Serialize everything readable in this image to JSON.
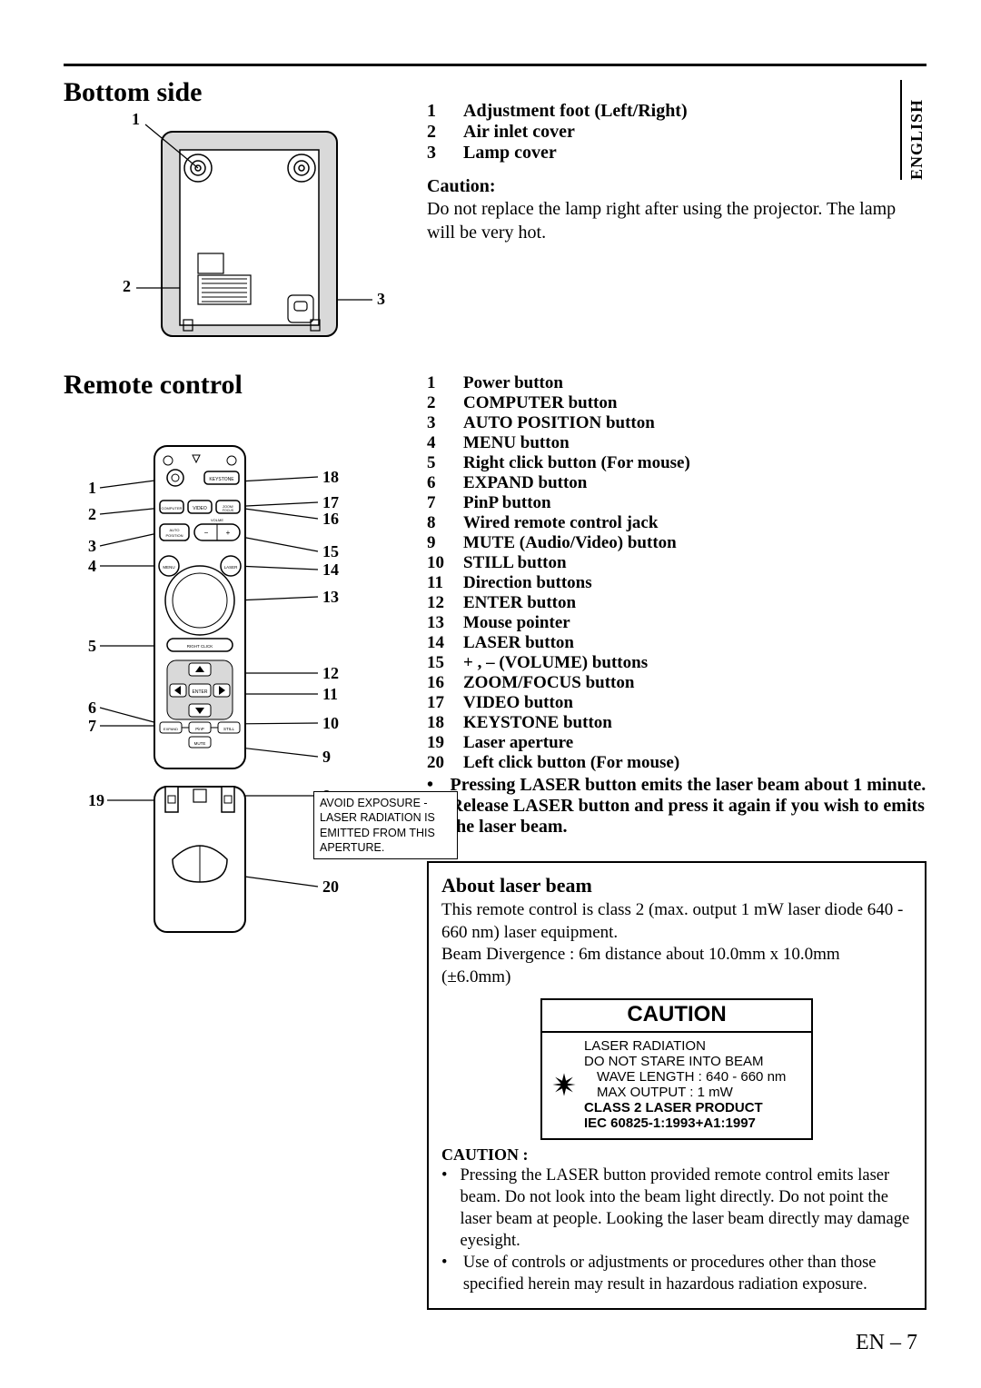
{
  "language_tab": "ENGLISH",
  "section_bottom": {
    "heading": "Bottom side",
    "items": [
      {
        "n": "1",
        "label": "Adjustment foot (Left/Right)"
      },
      {
        "n": "2",
        "label": "Air inlet cover"
      },
      {
        "n": "3",
        "label": "Lamp cover"
      }
    ],
    "caution_head": "Caution:",
    "caution_body": "Do not replace the lamp right after using the projector. The lamp will be very hot.",
    "callouts": {
      "one": "1",
      "two": "2",
      "three": "3"
    }
  },
  "section_remote": {
    "heading": "Remote control",
    "items": [
      {
        "n": "1",
        "label": "Power button"
      },
      {
        "n": "2",
        "label": "COMPUTER button"
      },
      {
        "n": "3",
        "label": "AUTO POSITION button"
      },
      {
        "n": "4",
        "label": "MENU button"
      },
      {
        "n": "5",
        "label": "Right click button (For mouse)"
      },
      {
        "n": "6",
        "label": "EXPAND button"
      },
      {
        "n": "7",
        "label": "PinP button"
      },
      {
        "n": "8",
        "label": "Wired remote control jack"
      },
      {
        "n": "9",
        "label": "MUTE (Audio/Video) button"
      },
      {
        "n": "10",
        "label": "STILL button"
      },
      {
        "n": "11",
        "label": "Direction buttons"
      },
      {
        "n": "12",
        "label": "ENTER button"
      },
      {
        "n": "13",
        "label": "Mouse pointer"
      },
      {
        "n": "14",
        "label": "LASER button"
      },
      {
        "n": "15",
        "label": "+ , – (VOLUME) buttons"
      },
      {
        "n": "16",
        "label": "ZOOM/FOCUS button"
      },
      {
        "n": "17",
        "label": "VIDEO button"
      },
      {
        "n": "18",
        "label": "KEYSTONE button"
      },
      {
        "n": "19",
        "label": "Laser aperture"
      },
      {
        "n": "20",
        "label": "Left click button (For mouse)"
      }
    ],
    "note": "Pressing LASER button emits the laser beam about 1 minute. Release LASER button and press it again if you wish to emits the laser beam.",
    "avoid_exposure": "AVOID EXPOSURE - LASER RADIATION IS EMITTED FROM THIS APERTURE.",
    "remote_labels": {
      "keystone": "KEYSTONE",
      "computer": "COMPUTER",
      "video": "VIDEO",
      "zoom": "ZOOM/\nFOCUS",
      "auto": "AUTO\nPOSITION",
      "volme": "VOLME",
      "menu": "MENU",
      "laser": "LASER",
      "rightclick": "RIGHT CLICK",
      "enter": "ENTER",
      "expand": "EXPAND",
      "pinp": "PinP",
      "still": "STILL",
      "mute": "MUTE"
    },
    "callouts": {
      "c1": "1",
      "c2": "2",
      "c3": "3",
      "c4": "4",
      "c5": "5",
      "c6": "6",
      "c7": "7",
      "c8": "8",
      "c9": "9",
      "c10": "10",
      "c11": "11",
      "c12": "12",
      "c13": "13",
      "c14": "14",
      "c15": "15",
      "c16": "16",
      "c17": "17",
      "c18": "18",
      "c19": "19",
      "c20": "20"
    }
  },
  "laser_section": {
    "heading": "About laser beam",
    "line1": "This remote control is class 2 (max. output 1 mW laser diode 640 - 660 nm) laser equipment.",
    "line2": "Beam Divergence : 6m distance about 10.0mm x 10.0mm (±6.0mm)",
    "label_caution": "CAUTION",
    "label_line1": "LASER RADIATION",
    "label_line2": "DO NOT STARE INTO BEAM",
    "label_line3": "WAVE LENGTH : 640 - 660 nm",
    "label_line4": "MAX OUTPUT : 1 mW",
    "label_line5": "CLASS 2 LASER PRODUCT",
    "label_line6": "IEC 60825-1:1993+A1:1997",
    "caution_head": "CAUTION :",
    "caution_b1": "Pressing the LASER button provided remote control emits laser beam. Do not look into the beam light directly. Do not point the laser beam at people. Looking the laser beam directly may damage eyesight.",
    "caution_b2": "Use of controls or adjustments or procedures other than those specified herein may result in hazardous radiation exposure."
  },
  "page_number": "EN – 7"
}
